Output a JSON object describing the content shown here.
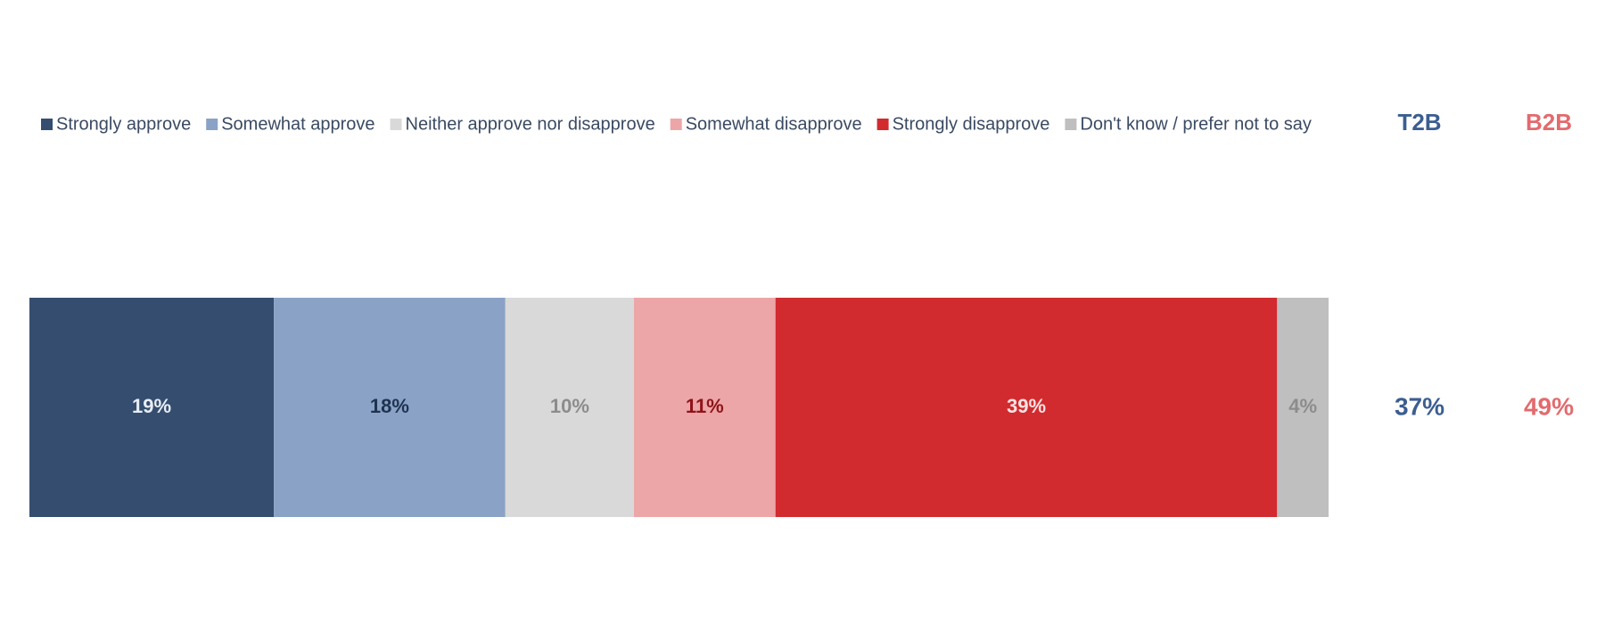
{
  "chart_data": {
    "type": "bar",
    "orientation": "horizontal",
    "stacked": true,
    "normalized": true,
    "legend_position": "top",
    "series": [
      {
        "name": "Strongly approve",
        "values": [
          19
        ],
        "label": "19%",
        "color": "#354e70",
        "label_color": "#e9eef5"
      },
      {
        "name": "Somewhat approve",
        "values": [
          18
        ],
        "label": "18%",
        "color": "#8aa2c6",
        "label_color": "#1f3350"
      },
      {
        "name": "Neither approve nor disapprove",
        "values": [
          10
        ],
        "label": "10%",
        "color": "#d9d9d9",
        "label_color": "#8c8c8c"
      },
      {
        "name": "Somewhat disapprove",
        "values": [
          11
        ],
        "label": "11%",
        "color": "#eda6a8",
        "label_color": "#8e1419"
      },
      {
        "name": "Strongly disapprove",
        "values": [
          39
        ],
        "label": "39%",
        "color": "#d12b2f",
        "label_color": "#fbe3e3"
      },
      {
        "name": "Don't know / prefer not to say",
        "values": [
          4
        ],
        "label": "4%",
        "color": "#bfbfbf",
        "label_color": "#8c8c8c"
      }
    ],
    "summary": [
      {
        "header": "T2B",
        "value": "37%",
        "color": "#3b5e91"
      },
      {
        "header": "B2B",
        "value": "49%",
        "color": "#e36a6e"
      }
    ]
  }
}
